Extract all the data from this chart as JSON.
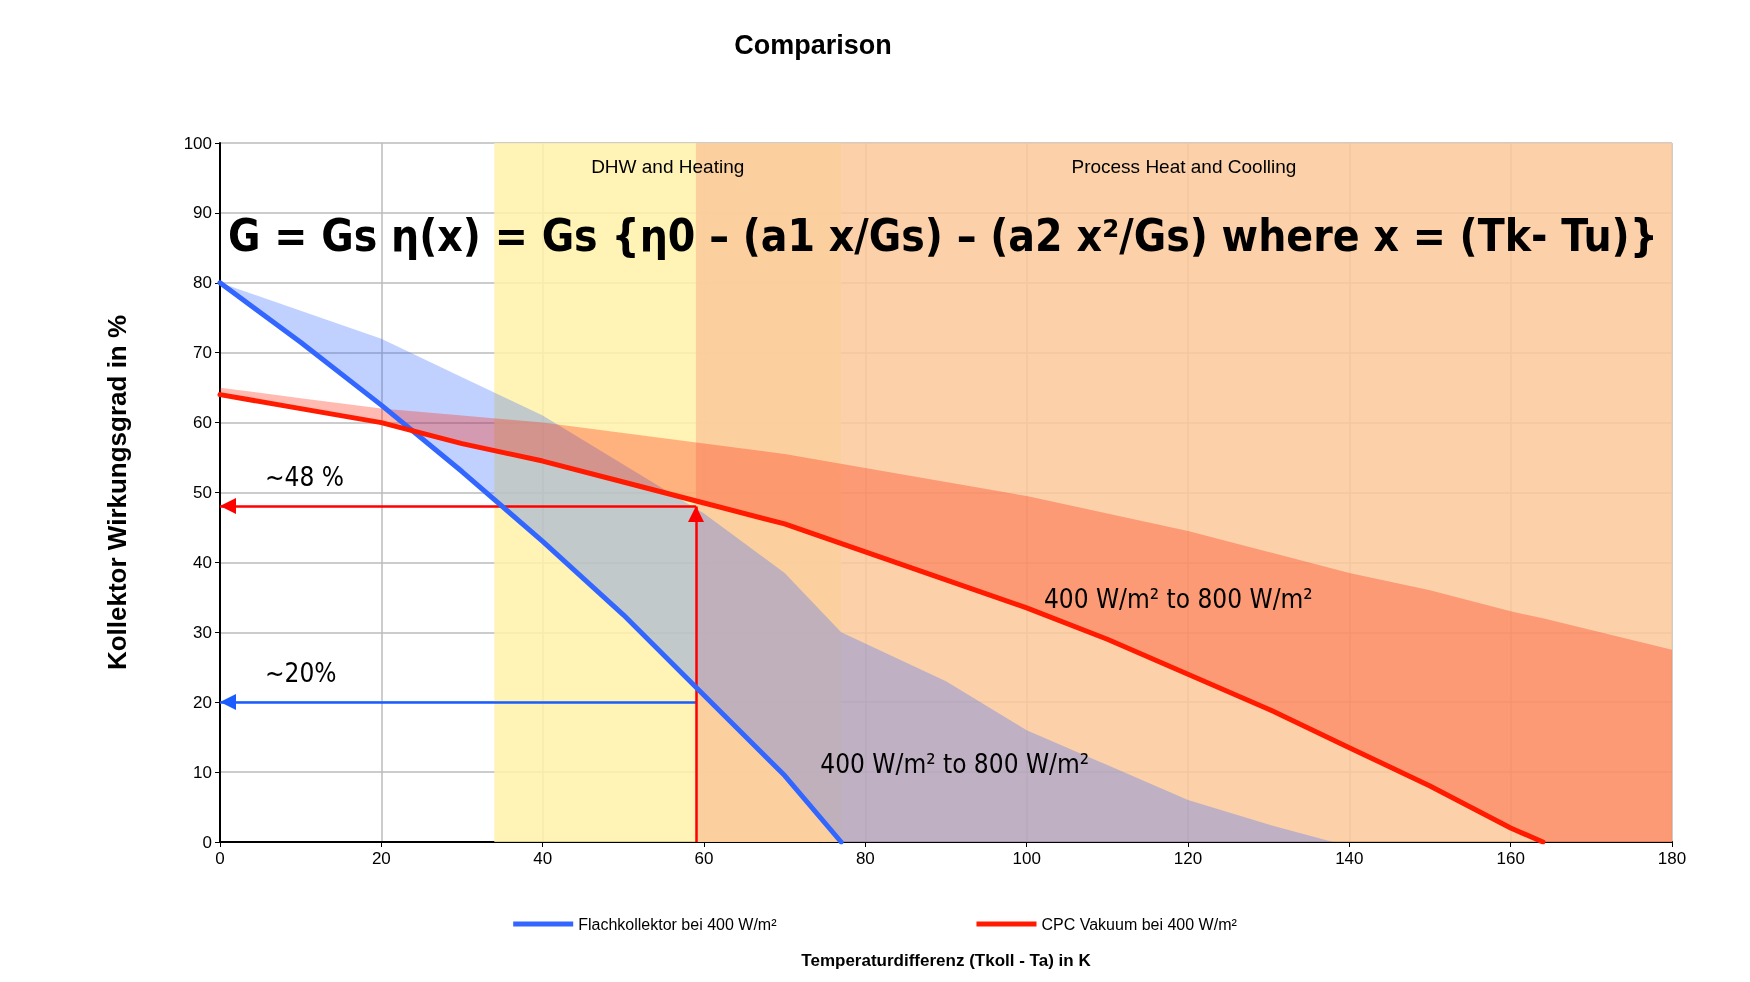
{
  "chart_data": {
    "type": "line",
    "title": "Comparison",
    "xlabel": "Temperaturdifferenz (Tkoll - Ta) in K",
    "ylabel": "Kollektor Wirkungsgrad in %",
    "xlim": [
      0,
      180
    ],
    "xticks": [
      0,
      20,
      40,
      60,
      80,
      100,
      120,
      140,
      160,
      180
    ],
    "ylim": [
      0,
      100
    ],
    "yticks": [
      0,
      10,
      20,
      30,
      40,
      50,
      60,
      70,
      80,
      90,
      100
    ],
    "grid": true,
    "legend": "bottom",
    "marker": "none",
    "line_style": "solid",
    "series": [
      {
        "name": "Flachkollektor bei 400 W/m²",
        "color": "#3366ff",
        "x": [
          0,
          10,
          20,
          30,
          40,
          50,
          60,
          70,
          77,
          90,
          100,
          110,
          120,
          130,
          138
        ],
        "values": [
          80,
          71.5,
          62.5,
          53,
          43,
          32.5,
          21,
          9.5,
          0,
          null,
          null,
          null,
          null,
          null,
          null
        ],
        "lower": [
          80,
          71.5,
          62.5,
          53,
          43,
          32.5,
          21,
          9.5,
          0,
          0,
          0,
          0,
          0,
          0,
          0
        ],
        "upper": [
          80,
          76,
          72,
          66.5,
          61,
          54,
          47,
          38.5,
          30,
          23,
          16,
          11,
          6,
          2.5,
          0
        ]
      },
      {
        "name": "CPC Vakuum bei 400 W/m²",
        "color": "#ff1a00",
        "x": [
          0,
          10,
          20,
          30,
          40,
          50,
          60,
          70,
          80,
          90,
          100,
          110,
          120,
          130,
          140,
          150,
          160,
          164,
          180
        ],
        "values": [
          64,
          62,
          60,
          57,
          54.5,
          51.5,
          48.5,
          45.5,
          41.5,
          37.5,
          33.5,
          29,
          24,
          19,
          13.5,
          8,
          2,
          0,
          null
        ],
        "lower": [
          64,
          62,
          60,
          57,
          54.5,
          51.5,
          48.5,
          45.5,
          41.5,
          37.5,
          33.5,
          29,
          24,
          19,
          13.5,
          8,
          2,
          0,
          0
        ],
        "upper": [
          65,
          63.5,
          62,
          61,
          60,
          58.5,
          57,
          55.5,
          53.5,
          51.5,
          49.5,
          47,
          44.5,
          41.5,
          38.5,
          36,
          33,
          32,
          27.5
        ]
      }
    ],
    "ref_lines": [
      {
        "axis": "y",
        "value": 20,
        "label": "~20%",
        "color": "#1a5cff"
      },
      {
        "axis": "y",
        "value": 48,
        "label": "~48 %",
        "color": "#ff0000"
      },
      {
        "axis": "x",
        "value": 59,
        "label": null,
        "color": "#ff0000"
      }
    ],
    "bands": [
      {
        "axis": "x",
        "from": 34,
        "to": 77,
        "label": "DHW and Heating",
        "color": "#fff2a8"
      },
      {
        "axis": "x",
        "from": 59,
        "to": 180,
        "label": "Process Heat and Coolling",
        "color": "#fcc99a"
      }
    ],
    "annotations": [
      "G = Gs η(x) = Gs {η0 – (a1 x/Gs) – (a2 x²/Gs) where x = (Tk- Tu)}",
      "400 W/m² to 800 W/m²",
      "400 W/m² to 800 W/m²"
    ]
  }
}
